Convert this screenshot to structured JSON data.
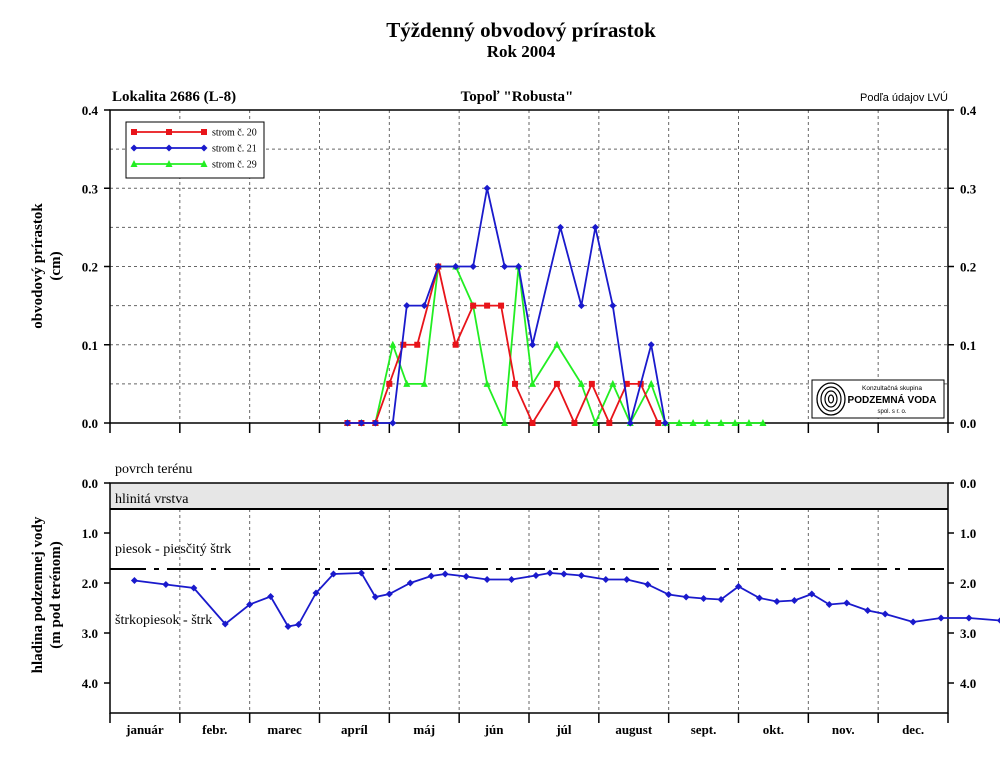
{
  "header": {
    "title": "Týždenný obvodový prírastok",
    "subtitle": "Rok 2004"
  },
  "colors": {
    "strom20": "#e8141a",
    "strom21": "#1a1acc",
    "strom29": "#22ee22",
    "water": "#1a1acc",
    "layer_fill": "#e6e6e6"
  },
  "chart_data": [
    {
      "type": "line",
      "locality": "Lokalita 2686 (L-8)",
      "species": "Topoľ \"Robusta\"",
      "source": "Podľa údajov LVÚ",
      "ylabel_line1": "obvodový prírastok",
      "ylabel_line2": "(cm)",
      "ylim": [
        0,
        0.4
      ],
      "yticks": [
        "0.0",
        "0.1",
        "0.2",
        "0.3",
        "0.4"
      ],
      "legend_position": "top-left",
      "grid": true,
      "series": [
        {
          "name": "strom č. 20",
          "color": "#e8141a",
          "marker": "square",
          "points": [
            [
              3.4,
              0.0
            ],
            [
              3.6,
              0.0
            ],
            [
              3.8,
              0.0
            ],
            [
              4.0,
              0.05
            ],
            [
              4.2,
              0.1
            ],
            [
              4.4,
              0.1
            ],
            [
              4.7,
              0.2
            ],
            [
              4.95,
              0.1
            ],
            [
              5.2,
              0.15
            ],
            [
              5.4,
              0.15
            ],
            [
              5.6,
              0.15
            ],
            [
              5.8,
              0.05
            ],
            [
              6.05,
              0.0
            ],
            [
              6.4,
              0.05
            ],
            [
              6.65,
              0.0
            ],
            [
              6.9,
              0.05
            ],
            [
              7.15,
              0.0
            ],
            [
              7.4,
              0.05
            ],
            [
              7.6,
              0.05
            ],
            [
              7.85,
              0.0
            ]
          ]
        },
        {
          "name": "strom č. 21",
          "color": "#1a1acc",
          "marker": "diamond",
          "points": [
            [
              3.4,
              0.0
            ],
            [
              3.6,
              0.0
            ],
            [
              3.8,
              0.0
            ],
            [
              4.05,
              0.0
            ],
            [
              4.25,
              0.15
            ],
            [
              4.5,
              0.15
            ],
            [
              4.7,
              0.2
            ],
            [
              4.95,
              0.2
            ],
            [
              5.2,
              0.2
            ],
            [
              5.4,
              0.3
            ],
            [
              5.65,
              0.2
            ],
            [
              5.85,
              0.2
            ],
            [
              6.05,
              0.1
            ],
            [
              6.45,
              0.25
            ],
            [
              6.75,
              0.15
            ],
            [
              6.95,
              0.25
            ],
            [
              7.2,
              0.15
            ],
            [
              7.45,
              0.0
            ],
            [
              7.75,
              0.1
            ],
            [
              7.95,
              0.0
            ]
          ]
        },
        {
          "name": "strom č. 29",
          "color": "#22ee22",
          "marker": "triangle",
          "points": [
            [
              3.4,
              0.0
            ],
            [
              3.6,
              0.0
            ],
            [
              3.8,
              0.0
            ],
            [
              4.05,
              0.1
            ],
            [
              4.25,
              0.05
            ],
            [
              4.5,
              0.05
            ],
            [
              4.7,
              0.2
            ],
            [
              4.95,
              0.2
            ],
            [
              5.2,
              0.15
            ],
            [
              5.4,
              0.05
            ],
            [
              5.65,
              0.0
            ],
            [
              5.85,
              0.2
            ],
            [
              6.05,
              0.05
            ],
            [
              6.4,
              0.1
            ],
            [
              6.75,
              0.05
            ],
            [
              6.95,
              0.0
            ],
            [
              7.2,
              0.05
            ],
            [
              7.45,
              0.0
            ],
            [
              7.75,
              0.05
            ],
            [
              7.95,
              0.0
            ],
            [
              8.15,
              0.0
            ],
            [
              8.35,
              0.0
            ],
            [
              8.55,
              0.0
            ],
            [
              8.75,
              0.0
            ],
            [
              8.95,
              0.0
            ],
            [
              9.15,
              0.0
            ],
            [
              9.35,
              0.0
            ]
          ]
        }
      ],
      "logo": {
        "line1": "Konzultačná skupina",
        "line2": "PODZEMNÁ VODA",
        "line3": "spol. s r. o."
      }
    },
    {
      "type": "line",
      "ylabel_line1": "hladina podzemnej vody",
      "ylabel_line2": "(m pod terénom)",
      "ylim": [
        0,
        4.6
      ],
      "yticks": [
        "0.0",
        "1.0",
        "2.0",
        "3.0",
        "4.0"
      ],
      "categories": [
        "január",
        "febr.",
        "marec",
        "apríl",
        "máj",
        "jún",
        "júl",
        "august",
        "sept.",
        "okt.",
        "nov.",
        "dec."
      ],
      "layers": {
        "surface": "povrch terénu",
        "clay": "hlinitá vrstva",
        "sand": "piesok - piesčitý štrk",
        "gravel": "štrkopiesok - štrk"
      },
      "clay_bottom": 0.55,
      "boundary_depth": 1.75,
      "series": [
        {
          "name": "",
          "color": "#1a1acc",
          "marker": "diamond",
          "points": [
            [
              0.35,
              1.95
            ],
            [
              0.8,
              2.03
            ],
            [
              1.2,
              2.1
            ],
            [
              1.65,
              2.82
            ],
            [
              2.0,
              2.43
            ],
            [
              2.3,
              2.27
            ],
            [
              2.55,
              2.87
            ],
            [
              2.7,
              2.83
            ],
            [
              2.95,
              2.2
            ],
            [
              3.2,
              1.82
            ],
            [
              3.6,
              1.8
            ],
            [
              3.8,
              2.28
            ],
            [
              4.0,
              2.22
            ],
            [
              4.3,
              2.0
            ],
            [
              4.6,
              1.86
            ],
            [
              4.8,
              1.82
            ],
            [
              5.1,
              1.87
            ],
            [
              5.4,
              1.93
            ],
            [
              5.75,
              1.93
            ],
            [
              6.1,
              1.85
            ],
            [
              6.3,
              1.8
            ],
            [
              6.5,
              1.82
            ],
            [
              6.75,
              1.85
            ],
            [
              7.1,
              1.93
            ],
            [
              7.4,
              1.93
            ],
            [
              7.7,
              2.03
            ],
            [
              8.0,
              2.23
            ],
            [
              8.25,
              2.28
            ],
            [
              8.5,
              2.31
            ],
            [
              8.75,
              2.33
            ],
            [
              9.0,
              2.07
            ],
            [
              9.3,
              2.3
            ],
            [
              9.55,
              2.37
            ],
            [
              9.8,
              2.35
            ],
            [
              10.05,
              2.22
            ],
            [
              10.3,
              2.43
            ],
            [
              10.55,
              2.4
            ],
            [
              10.85,
              2.55
            ],
            [
              11.1,
              2.62
            ],
            [
              11.5,
              2.78
            ],
            [
              11.9,
              2.7
            ],
            [
              12.3,
              2.7
            ],
            [
              12.75,
              2.75
            ]
          ]
        }
      ]
    }
  ]
}
